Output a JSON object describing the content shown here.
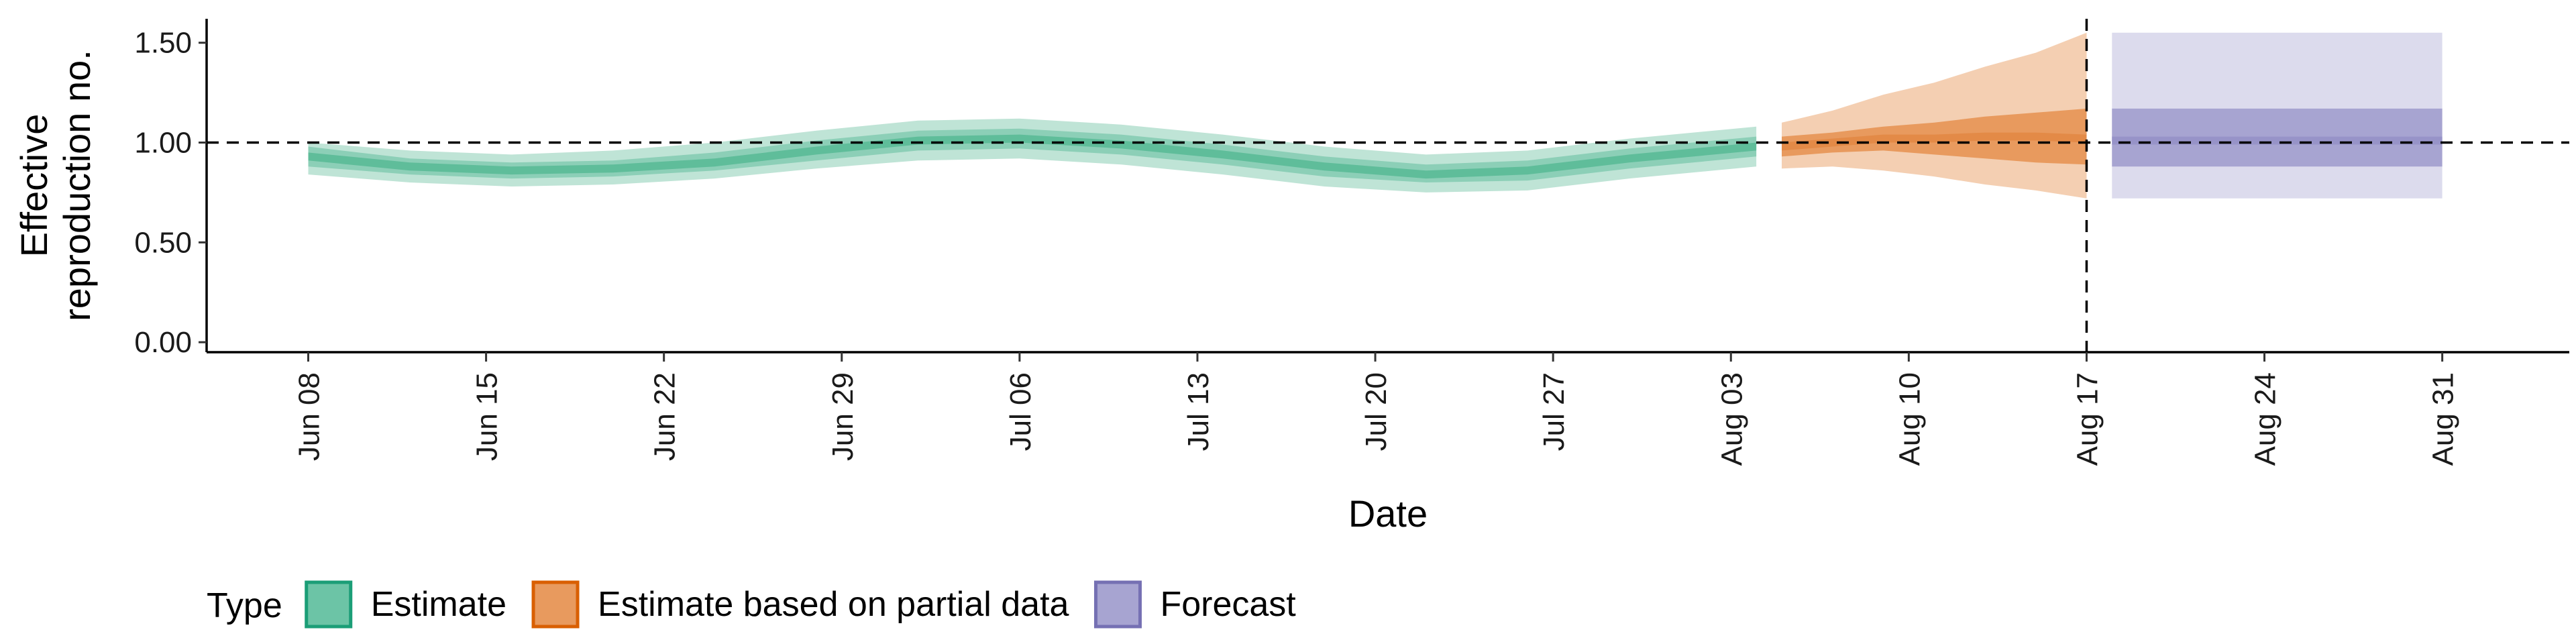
{
  "chart_data": {
    "type": "area",
    "title": "",
    "xlabel": "Date",
    "ylabel_lines": [
      "Effective",
      "reproduction no."
    ],
    "ylim": [
      -0.05,
      1.62
    ],
    "y_ticks": [
      {
        "value": 0.0,
        "label": "0.00"
      },
      {
        "value": 0.5,
        "label": "0.50"
      },
      {
        "value": 1.0,
        "label": "1.00"
      },
      {
        "value": 1.5,
        "label": "1.50"
      }
    ],
    "xlim": [
      "2020-06-04",
      "2020-09-05"
    ],
    "x_ticks": [
      {
        "date": "2020-06-08",
        "label": "Jun 08"
      },
      {
        "date": "2020-06-15",
        "label": "Jun 15"
      },
      {
        "date": "2020-06-22",
        "label": "Jun 22"
      },
      {
        "date": "2020-06-29",
        "label": "Jun 29"
      },
      {
        "date": "2020-07-06",
        "label": "Jul 06"
      },
      {
        "date": "2020-07-13",
        "label": "Jul 13"
      },
      {
        "date": "2020-07-20",
        "label": "Jul 20"
      },
      {
        "date": "2020-07-27",
        "label": "Jul 27"
      },
      {
        "date": "2020-08-03",
        "label": "Aug 03"
      },
      {
        "date": "2020-08-10",
        "label": "Aug 10"
      },
      {
        "date": "2020-08-17",
        "label": "Aug 17"
      },
      {
        "date": "2020-08-24",
        "label": "Aug 24"
      },
      {
        "date": "2020-08-31",
        "label": "Aug 31"
      }
    ],
    "reference_hline": 1.0,
    "reference_vline": "2020-08-17",
    "grid": false,
    "legend": {
      "title": "Type",
      "position": "bottom",
      "entries": [
        {
          "label": "Estimate",
          "fill": "#6cc4a6",
          "border": "#1b9e77"
        },
        {
          "label": "Estimate based on partial data",
          "fill": "#e89a5e",
          "border": "#d95f02"
        },
        {
          "label": "Forecast",
          "fill": "#a7a4d1",
          "border": "#7570b3"
        }
      ]
    },
    "series": [
      {
        "name": "Estimate",
        "colors": {
          "outer": "#bfe4d6",
          "inner": "#8ccfb7",
          "median": "#5fbd9a"
        },
        "dates": [
          "2020-06-08",
          "2020-06-12",
          "2020-06-16",
          "2020-06-20",
          "2020-06-24",
          "2020-06-28",
          "2020-07-02",
          "2020-07-06",
          "2020-07-10",
          "2020-07-14",
          "2020-07-18",
          "2020-07-22",
          "2020-07-26",
          "2020-07-30",
          "2020-08-04"
        ],
        "lower90": [
          0.84,
          0.8,
          0.78,
          0.79,
          0.82,
          0.87,
          0.91,
          0.92,
          0.89,
          0.84,
          0.78,
          0.75,
          0.76,
          0.82,
          0.88
        ],
        "lower50": [
          0.88,
          0.84,
          0.82,
          0.83,
          0.86,
          0.91,
          0.96,
          0.97,
          0.94,
          0.89,
          0.83,
          0.8,
          0.81,
          0.87,
          0.93
        ],
        "median": [
          0.93,
          0.88,
          0.86,
          0.87,
          0.9,
          0.96,
          1.01,
          1.02,
          0.99,
          0.94,
          0.88,
          0.84,
          0.86,
          0.92,
          0.98
        ],
        "upper50": [
          0.98,
          0.92,
          0.9,
          0.91,
          0.95,
          1.01,
          1.06,
          1.07,
          1.04,
          0.99,
          0.93,
          0.89,
          0.91,
          0.97,
          1.03
        ],
        "upper90": [
          1.0,
          0.96,
          0.94,
          0.96,
          1.0,
          1.06,
          1.11,
          1.12,
          1.09,
          1.04,
          0.98,
          0.94,
          0.96,
          1.02,
          1.08
        ]
      },
      {
        "name": "Estimate based on partial data",
        "colors": {
          "outer": "#f4cfb2",
          "inner": "#e89a5e",
          "median": "#e38a47"
        },
        "dates": [
          "2020-08-05",
          "2020-08-07",
          "2020-08-09",
          "2020-08-11",
          "2020-08-13",
          "2020-08-15",
          "2020-08-17"
        ],
        "lower90": [
          0.87,
          0.88,
          0.86,
          0.83,
          0.79,
          0.76,
          0.72
        ],
        "lower50": [
          0.93,
          0.95,
          0.96,
          0.94,
          0.92,
          0.9,
          0.89
        ],
        "median": [
          0.98,
          1.0,
          1.02,
          1.02,
          1.03,
          1.03,
          1.02
        ],
        "upper50": [
          1.03,
          1.05,
          1.08,
          1.1,
          1.13,
          1.15,
          1.17
        ],
        "upper90": [
          1.1,
          1.16,
          1.24,
          1.3,
          1.38,
          1.45,
          1.55
        ]
      },
      {
        "name": "Forecast",
        "colors": {
          "outer": "#dcdbed",
          "inner": "#a7a4d1",
          "median": "#9793c8"
        },
        "dates": [
          "2020-08-18",
          "2020-08-31"
        ],
        "lower90": [
          0.72,
          0.72
        ],
        "lower50": [
          0.88,
          0.88
        ],
        "median": [
          1.01,
          1.01
        ],
        "upper50": [
          1.17,
          1.17
        ],
        "upper90": [
          1.55,
          1.55
        ]
      }
    ]
  }
}
